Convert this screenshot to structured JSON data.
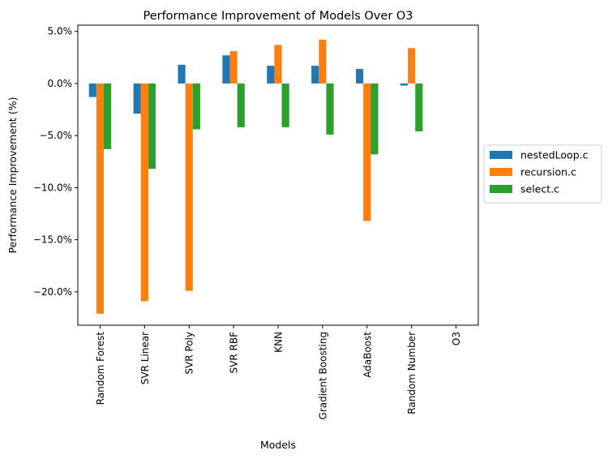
{
  "chart_data": {
    "type": "bar",
    "title": "Performance Improvement of Models Over O3",
    "xlabel": "Models",
    "ylabel": "Performance Improvement (%)",
    "categories": [
      "Random Forest",
      "SVR Linear",
      "SVR Poly",
      "SVR RBF",
      "KNN",
      "Gradient Boosting",
      "AdaBoost",
      "Random Number",
      "O3"
    ],
    "series": [
      {
        "name": "nestedLoop.c",
        "color": "#1f77b4",
        "values": [
          -1.3,
          -2.9,
          1.8,
          2.7,
          1.7,
          1.7,
          1.4,
          -0.2,
          0.0
        ]
      },
      {
        "name": "recursion.c",
        "color": "#ff7f0e",
        "values": [
          -22.1,
          -20.9,
          -19.9,
          3.1,
          3.7,
          4.2,
          -13.2,
          3.4,
          0.0
        ]
      },
      {
        "name": "select.c",
        "color": "#2ca02c",
        "values": [
          -6.3,
          -8.2,
          -4.4,
          -4.2,
          -4.2,
          -4.9,
          -6.8,
          -4.6,
          0.0
        ]
      }
    ],
    "ylim": [
      -23.2,
      5.6
    ],
    "yticks": [
      5,
      0,
      -5,
      -10,
      -15,
      -20
    ],
    "ytick_labels": [
      "5.0%",
      "0.0%",
      "−5.0%",
      "−10.0%",
      "−15.0%",
      "−20.0%"
    ],
    "grid": false,
    "legend_position": "outside right, center"
  }
}
